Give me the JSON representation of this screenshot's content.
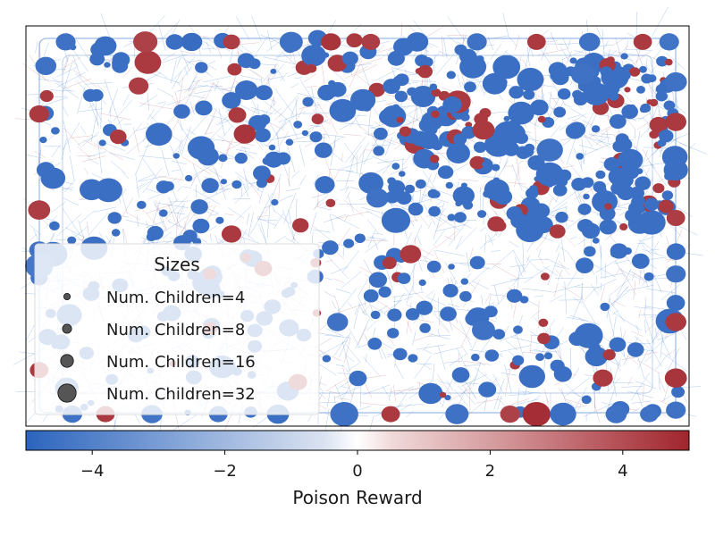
{
  "chart_data": {
    "type": "scatter",
    "title": "",
    "description_kind": "tree-visualization",
    "colorbar": {
      "label": "Poison Reward",
      "range": [
        -5,
        5
      ],
      "ticks": [
        -4,
        -2,
        0,
        2,
        4
      ],
      "tick_labels": [
        "−4",
        "−2",
        "0",
        "2",
        "4"
      ],
      "colormap": [
        "#2b64be",
        "#e9ecf3",
        "#fff8f8",
        "#e7c3c3",
        "#a1252d"
      ]
    },
    "legend": {
      "title": "Sizes",
      "placement": "lower-left",
      "entries": [
        {
          "label": "Num. Children=4",
          "children": 4
        },
        {
          "label": "Num. Children=8",
          "children": 8
        },
        {
          "label": "Num. Children=16",
          "children": 16
        },
        {
          "label": "Num. Children=32",
          "children": 32
        }
      ]
    },
    "colors": {
      "negative": "#2b64be",
      "positive": "#a1252d",
      "edge_blue": "#5a8fd6",
      "edge_red": "#c4737a"
    },
    "points": [
      {
        "x": 0.06,
        "y": 0.04,
        "c": -4.5,
        "s": 8
      },
      {
        "x": 0.12,
        "y": 0.05,
        "c": -4.6,
        "s": 10
      },
      {
        "x": 0.18,
        "y": 0.04,
        "c": 4.3,
        "s": 12
      },
      {
        "x": 0.25,
        "y": 0.04,
        "c": -4.7,
        "s": 9
      },
      {
        "x": 0.31,
        "y": 0.04,
        "c": 4.4,
        "s": 6
      },
      {
        "x": 0.4,
        "y": 0.04,
        "c": -4.5,
        "s": 11
      },
      {
        "x": 0.46,
        "y": 0.04,
        "c": 4.6,
        "s": 8
      },
      {
        "x": 0.52,
        "y": 0.04,
        "c": 4.4,
        "s": 7
      },
      {
        "x": 0.59,
        "y": 0.04,
        "c": -4.6,
        "s": 10
      },
      {
        "x": 0.68,
        "y": 0.04,
        "c": -4.5,
        "s": 8
      },
      {
        "x": 0.77,
        "y": 0.04,
        "c": 4.5,
        "s": 7
      },
      {
        "x": 0.85,
        "y": 0.04,
        "c": -4.5,
        "s": 9
      },
      {
        "x": 0.93,
        "y": 0.04,
        "c": 4.5,
        "s": 7
      },
      {
        "x": 0.97,
        "y": 0.04,
        "c": -4.4,
        "s": 8
      },
      {
        "x": 0.03,
        "y": 0.1,
        "c": -4.5,
        "s": 9
      },
      {
        "x": 0.02,
        "y": 0.22,
        "c": 4.5,
        "s": 8
      },
      {
        "x": 0.03,
        "y": 0.36,
        "c": -4.6,
        "s": 7
      },
      {
        "x": 0.02,
        "y": 0.46,
        "c": 4.4,
        "s": 10
      },
      {
        "x": 0.02,
        "y": 0.56,
        "c": -4.5,
        "s": 8
      },
      {
        "x": 0.02,
        "y": 0.63,
        "c": -4.5,
        "s": 6
      },
      {
        "x": 0.02,
        "y": 0.86,
        "c": 4.5,
        "s": 7
      },
      {
        "x": 0.98,
        "y": 0.14,
        "c": -4.5,
        "s": 10
      },
      {
        "x": 0.98,
        "y": 0.24,
        "c": 4.5,
        "s": 9
      },
      {
        "x": 0.98,
        "y": 0.36,
        "c": -4.6,
        "s": 12
      },
      {
        "x": 0.98,
        "y": 0.48,
        "c": 4.4,
        "s": 7
      },
      {
        "x": 0.98,
        "y": 0.62,
        "c": -4.5,
        "s": 8
      },
      {
        "x": 0.98,
        "y": 0.74,
        "c": 4.5,
        "s": 9
      },
      {
        "x": 0.98,
        "y": 0.88,
        "c": 4.6,
        "s": 10
      },
      {
        "x": 0.98,
        "y": 0.96,
        "c": -4.5,
        "s": 8
      },
      {
        "x": 0.07,
        "y": 0.97,
        "c": -4.5,
        "s": 8
      },
      {
        "x": 0.12,
        "y": 0.97,
        "c": 4.5,
        "s": 7
      },
      {
        "x": 0.19,
        "y": 0.97,
        "c": -4.4,
        "s": 9
      },
      {
        "x": 0.29,
        "y": 0.97,
        "c": -4.5,
        "s": 7
      },
      {
        "x": 0.38,
        "y": 0.97,
        "c": -4.6,
        "s": 10
      },
      {
        "x": 0.48,
        "y": 0.97,
        "c": -4.5,
        "s": 16
      },
      {
        "x": 0.55,
        "y": 0.97,
        "c": 4.5,
        "s": 7
      },
      {
        "x": 0.65,
        "y": 0.97,
        "c": -4.5,
        "s": 11
      },
      {
        "x": 0.73,
        "y": 0.97,
        "c": 4.3,
        "s": 8
      },
      {
        "x": 0.77,
        "y": 0.97,
        "c": 4.8,
        "s": 16
      },
      {
        "x": 0.81,
        "y": 0.97,
        "c": -4.6,
        "s": 14
      },
      {
        "x": 0.89,
        "y": 0.97,
        "c": -4.5,
        "s": 9
      },
      {
        "x": 0.94,
        "y": 0.97,
        "c": -4.5,
        "s": 7
      },
      {
        "x": 0.02,
        "y": 0.6,
        "c": -4.3,
        "s": 16
      },
      {
        "x": 0.76,
        "y": 0.51,
        "c": -4.6,
        "s": 16
      },
      {
        "x": 0.79,
        "y": 0.31,
        "c": -4.5,
        "s": 14
      },
      {
        "x": 0.86,
        "y": 0.17,
        "c": -4.6,
        "s": 14
      },
      {
        "x": 0.84,
        "y": 0.12,
        "c": -4.5,
        "s": 12
      },
      {
        "x": 0.71,
        "y": 0.41,
        "c": -4.6,
        "s": 13
      },
      {
        "x": 0.69,
        "y": 0.26,
        "c": 4.5,
        "s": 10
      },
      {
        "x": 0.33,
        "y": 0.27,
        "c": 4.6,
        "s": 10
      },
      {
        "x": 0.17,
        "y": 0.15,
        "c": 4.4,
        "s": 8
      },
      {
        "x": 0.58,
        "y": 0.57,
        "c": 4.5,
        "s": 9
      },
      {
        "x": 0.53,
        "y": 0.43,
        "c": -4.5,
        "s": 10
      },
      {
        "x": 0.69,
        "y": 0.76,
        "c": -4.5,
        "s": 11
      },
      {
        "x": 0.87,
        "y": 0.88,
        "c": 4.5,
        "s": 8
      },
      {
        "x": 0.41,
        "y": 0.89,
        "c": 4.5,
        "s": 7
      },
      {
        "x": 0.47,
        "y": 0.74,
        "c": -4.5,
        "s": 9
      },
      {
        "x": 0.31,
        "y": 0.52,
        "c": 4.5,
        "s": 8
      }
    ]
  }
}
